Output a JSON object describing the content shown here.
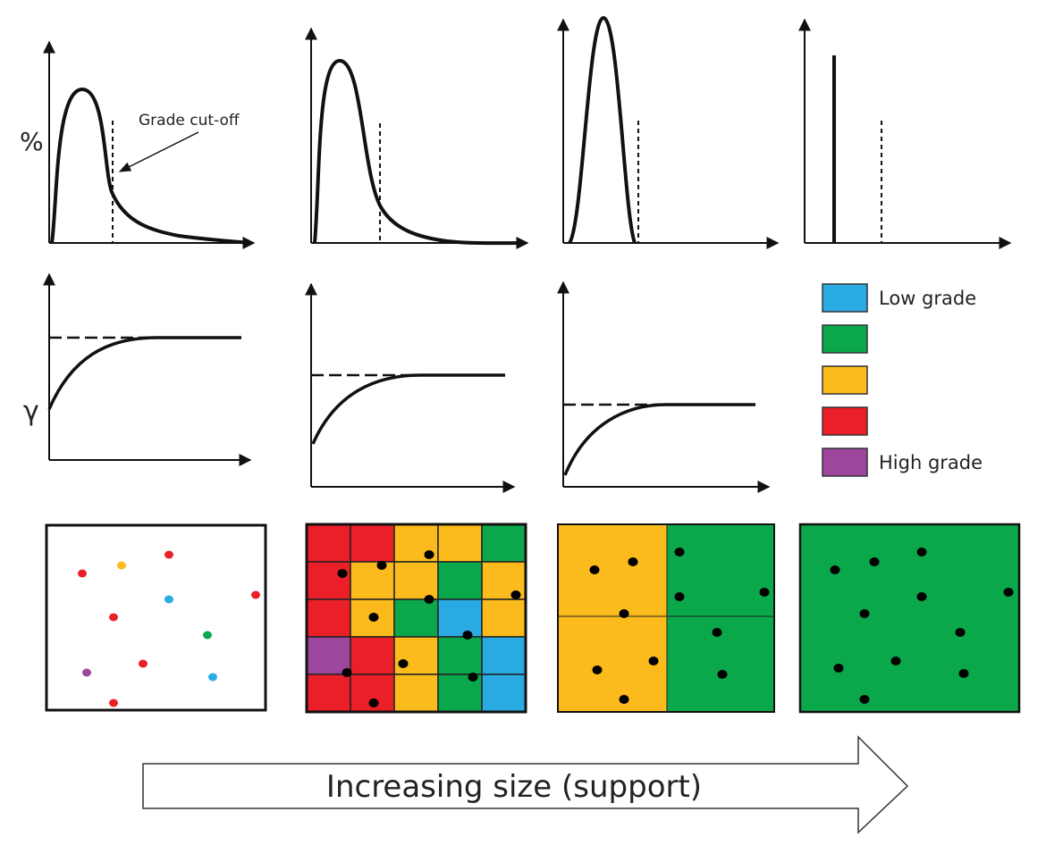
{
  "labels": {
    "percent_axis": "%",
    "variogram_axis": "γ",
    "cutoff_annotation": "Grade cut-off",
    "arrow_text": "Increasing size (support)"
  },
  "legend": [
    {
      "key": "B",
      "label": "Low grade",
      "color": "#29aae2"
    },
    {
      "key": "G",
      "label": "",
      "color": "#0aa74b"
    },
    {
      "key": "Y",
      "label": "",
      "color": "#fcbb1c"
    },
    {
      "key": "R",
      "label": "",
      "color": "#ea1f27"
    },
    {
      "key": "P",
      "label": "High grade",
      "color": "#9c469d"
    }
  ],
  "point_samples": [
    "R",
    "Y",
    "R",
    "B",
    "R",
    "R",
    "G",
    "R",
    "P",
    "B",
    "R"
  ],
  "block_grid_5x5": [
    [
      "R",
      "R",
      "Y",
      "Y",
      "G"
    ],
    [
      "R",
      "Y",
      "Y",
      "G",
      "Y"
    ],
    [
      "R",
      "Y",
      "G",
      "B",
      "Y"
    ],
    [
      "P",
      "R",
      "Y",
      "G",
      "B"
    ],
    [
      "R",
      "R",
      "Y",
      "G",
      "B"
    ]
  ],
  "block_grid_2x2": [
    [
      "Y",
      "G"
    ],
    [
      "Y",
      "G"
    ]
  ],
  "block_single": "G"
}
